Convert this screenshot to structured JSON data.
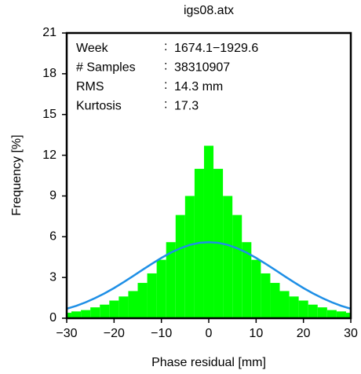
{
  "chart_data": {
    "type": "histogram",
    "title": "igs08.atx",
    "xlabel": "Phase residual [mm]",
    "ylabel": "Frequency [%]",
    "bins": [
      -31,
      -29,
      -27,
      -25,
      -23,
      -21,
      -19,
      -17,
      -15,
      -13,
      -11,
      -9,
      -7,
      -5,
      -3,
      -1,
      1,
      3,
      5,
      7,
      9,
      11,
      13,
      15,
      17,
      19,
      21,
      23,
      25,
      27,
      29,
      31
    ],
    "values": [
      0.4,
      0.5,
      0.6,
      0.8,
      1.0,
      1.3,
      1.6,
      2.0,
      2.6,
      3.3,
      4.3,
      5.6,
      7.6,
      9.0,
      11.0,
      12.7,
      11.0,
      9.0,
      7.6,
      5.6,
      4.3,
      3.3,
      2.6,
      2.0,
      1.6,
      1.3,
      1.0,
      0.8,
      0.6,
      0.5,
      0.4
    ],
    "color": "#00ff00",
    "fit": {
      "type": "line",
      "color": "#1e8fe6",
      "x": [
        -30,
        -28,
        -26,
        -24,
        -22,
        -20,
        -18,
        -16,
        -14,
        -12,
        -10,
        -8,
        -6,
        -4,
        -2,
        0,
        2,
        4,
        6,
        8,
        10,
        12,
        14,
        16,
        18,
        20,
        22,
        24,
        26,
        28,
        30
      ],
      "values": [
        0.7,
        0.91,
        1.17,
        1.48,
        1.83,
        2.22,
        2.65,
        3.1,
        3.56,
        4.01,
        4.44,
        4.83,
        5.15,
        5.4,
        5.55,
        5.6,
        5.55,
        5.4,
        5.15,
        4.83,
        4.44,
        4.01,
        3.56,
        3.1,
        2.65,
        2.22,
        1.83,
        1.48,
        1.17,
        0.91,
        0.7
      ]
    },
    "xlim": [
      -30,
      30
    ],
    "xticks": [
      {
        "value": -30,
        "label": "−30"
      },
      {
        "value": -20,
        "label": "−20"
      },
      {
        "value": -10,
        "label": "−10"
      },
      0,
      10,
      20,
      30
    ],
    "ylim": [
      0,
      21
    ],
    "yticks": [
      0,
      3,
      6,
      9,
      12,
      15,
      18,
      21
    ],
    "annotations": {
      "separator": ":",
      "rows": [
        {
          "label": "Week",
          "value": "1674.1−1929.6"
        },
        {
          "label": "# Samples",
          "value": "38310907"
        },
        {
          "label": "RMS",
          "value": "14.3 mm"
        },
        {
          "label": "Kurtosis",
          "value": "17.3"
        }
      ]
    }
  }
}
